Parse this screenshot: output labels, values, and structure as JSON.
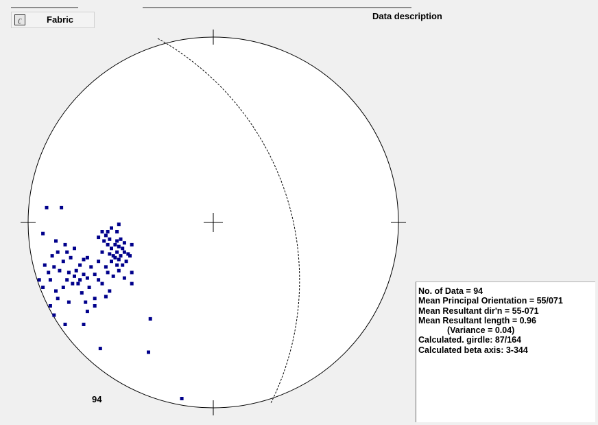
{
  "tab": {
    "label": "Fabric",
    "icon": "document-icon"
  },
  "panel": {
    "title": "Data description"
  },
  "stats": {
    "no_of_data": "No. of Data = 94",
    "mean_principal_orientation": "Mean Principal Orientation = 55/071",
    "mean_resultant_dir": "Mean Resultant dir'n = 55-071",
    "mean_resultant_length": "Mean Resultant length = 0.96",
    "variance": "(Variance = 0.04)",
    "calculated_girdle": "Calculated. girdle: 87/164",
    "calculated_beta_axis": "Calculated beta axis: 3-344"
  },
  "count_label": "94",
  "colors": {
    "background": "#f0f0f0",
    "net_fill": "#ffffff",
    "net_outline": "#000000",
    "pole": "#00008b",
    "girdle": "#000000"
  },
  "chart_data": {
    "type": "scatter",
    "projection": "equal-area stereonet (lower hemisphere)",
    "n": 94,
    "girdle": "87/164 (dashed great circle)",
    "note": "poles plotted as points in stereonet plane coordinates (-1..1, north up)",
    "points": [
      [
        -0.9,
        0.08
      ],
      [
        -0.82,
        0.08
      ],
      [
        -0.51,
        -0.01
      ],
      [
        -0.55,
        -0.03
      ],
      [
        -0.52,
        -0.05
      ],
      [
        -0.57,
        -0.05
      ],
      [
        -0.5,
        -0.09
      ],
      [
        -0.52,
        -0.1
      ],
      [
        -0.48,
        -0.11
      ],
      [
        -0.53,
        -0.12
      ],
      [
        -0.51,
        -0.13
      ],
      [
        -0.49,
        -0.14
      ],
      [
        -0.55,
        -0.14
      ],
      [
        -0.52,
        -0.16
      ],
      [
        -0.48,
        -0.16
      ],
      [
        -0.46,
        -0.17
      ],
      [
        -0.5,
        -0.18
      ],
      [
        -0.54,
        -0.18
      ],
      [
        -0.51,
        -0.2
      ],
      [
        -0.47,
        -0.21
      ],
      [
        -0.49,
        -0.23
      ],
      [
        -0.52,
        -0.23
      ],
      [
        -0.55,
        -0.21
      ],
      [
        -0.57,
        -0.12
      ],
      [
        -0.59,
        -0.1
      ],
      [
        -0.56,
        -0.09
      ],
      [
        -0.58,
        -0.07
      ],
      [
        -0.6,
        -0.05
      ],
      [
        -0.62,
        -0.08
      ],
      [
        -0.45,
        -0.18
      ],
      [
        -0.44,
        -0.12
      ],
      [
        -0.53,
        -0.19
      ],
      [
        -0.56,
        -0.17
      ],
      [
        -0.92,
        -0.06
      ],
      [
        -0.85,
        -0.1
      ],
      [
        -0.8,
        -0.12
      ],
      [
        -0.75,
        -0.14
      ],
      [
        -0.79,
        -0.16
      ],
      [
        -0.84,
        -0.16
      ],
      [
        -0.87,
        -0.18
      ],
      [
        -0.77,
        -0.19
      ],
      [
        -0.81,
        -0.21
      ],
      [
        -0.72,
        -0.23
      ],
      [
        -0.7,
        -0.2
      ],
      [
        -0.68,
        -0.19
      ],
      [
        -0.74,
        -0.26
      ],
      [
        -0.66,
        -0.24
      ],
      [
        -0.7,
        -0.28
      ],
      [
        -0.68,
        -0.3
      ],
      [
        -0.72,
        -0.31
      ],
      [
        -0.64,
        -0.28
      ],
      [
        -0.62,
        -0.31
      ],
      [
        -0.6,
        -0.33
      ],
      [
        -0.67,
        -0.35
      ],
      [
        -0.76,
        -0.33
      ],
      [
        -0.79,
        -0.31
      ],
      [
        -0.81,
        -0.35
      ],
      [
        -0.85,
        -0.37
      ],
      [
        -0.88,
        -0.31
      ],
      [
        -0.92,
        -0.35
      ],
      [
        -0.94,
        -0.31
      ],
      [
        -0.89,
        -0.27
      ],
      [
        -0.91,
        -0.23
      ],
      [
        -0.83,
        -0.26
      ],
      [
        -0.86,
        -0.24
      ],
      [
        -0.78,
        -0.27
      ],
      [
        -0.75,
        -0.29
      ],
      [
        -0.73,
        -0.33
      ],
      [
        -0.71,
        -0.38
      ],
      [
        -0.64,
        -0.41
      ],
      [
        -0.58,
        -0.4
      ],
      [
        -0.56,
        -0.37
      ],
      [
        -0.54,
        -0.29
      ],
      [
        -0.48,
        -0.3
      ],
      [
        -0.44,
        -0.27
      ],
      [
        -0.51,
        -0.26
      ],
      [
        -0.58,
        -0.24
      ],
      [
        -0.62,
        -0.21
      ],
      [
        -0.6,
        -0.16
      ],
      [
        -0.57,
        -0.27
      ],
      [
        -0.64,
        -0.45
      ],
      [
        -0.69,
        -0.43
      ],
      [
        -0.78,
        -0.43
      ],
      [
        -0.84,
        -0.41
      ],
      [
        -0.88,
        -0.45
      ],
      [
        -0.86,
        -0.5
      ],
      [
        -0.8,
        -0.55
      ],
      [
        -0.68,
        -0.48
      ],
      [
        -0.7,
        -0.55
      ],
      [
        -0.44,
        -0.33
      ],
      [
        -0.34,
        -0.52
      ],
      [
        -0.61,
        -0.68
      ],
      [
        -0.35,
        -0.7
      ],
      [
        -0.17,
        -0.95
      ]
    ]
  }
}
